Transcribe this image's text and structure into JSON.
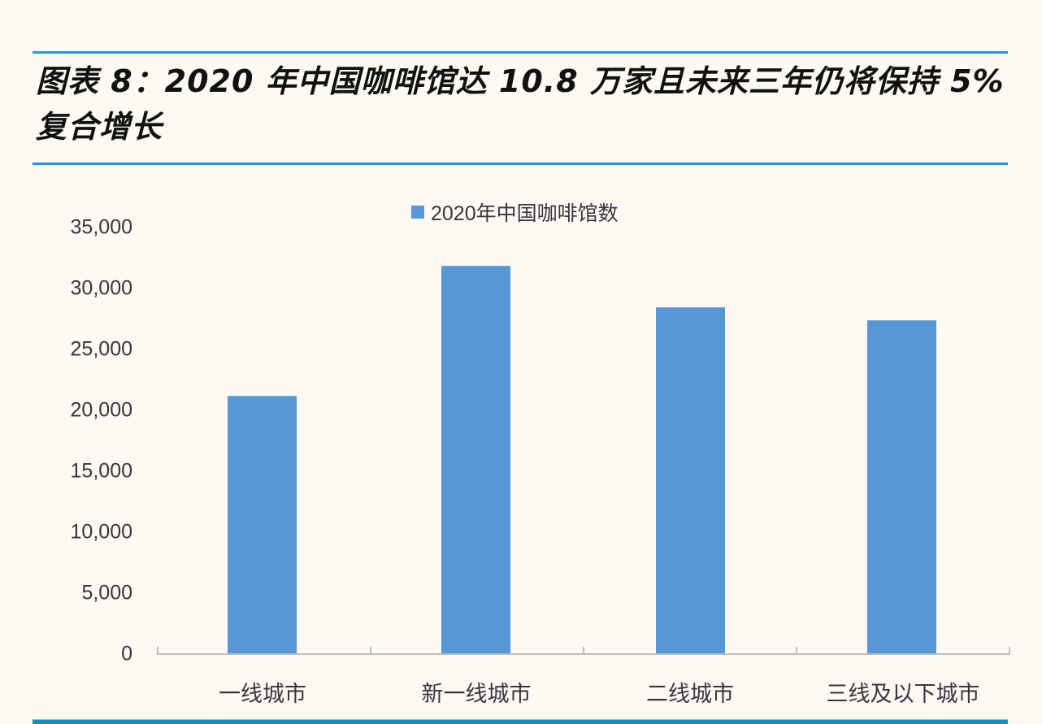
{
  "header": {
    "title": "图表 8：2020 年中国咖啡馆达 10.8 万家且未来三年仍将保持 5%复合增长"
  },
  "colors": {
    "accent_rule": "#1f9bd7",
    "bar": "#5797d6",
    "background": "#fdfaf3"
  },
  "legend": {
    "label": "2020年中国咖啡馆数"
  },
  "y_axis": {
    "ticks": [
      "35,000",
      "30,000",
      "25,000",
      "20,000",
      "15,000",
      "10,000",
      "5,000",
      "0"
    ]
  },
  "x_axis": {
    "labels": [
      "一线城市",
      "新一线城市",
      "二线城市",
      "三线及以下城市"
    ]
  },
  "chart_data": {
    "type": "bar",
    "title": "图表 8：2020 年中国咖啡馆达 10.8 万家且未来三年仍将保持 5%复合增长",
    "categories": [
      "一线城市",
      "新一线城市",
      "二线城市",
      "三线及以下城市"
    ],
    "series": [
      {
        "name": "2020年中国咖啡馆数",
        "values": [
          21200,
          31900,
          28500,
          27400
        ]
      }
    ],
    "xlabel": "",
    "ylabel": "",
    "ylim": [
      0,
      35000
    ],
    "yticks": [
      0,
      5000,
      10000,
      15000,
      20000,
      25000,
      30000,
      35000
    ],
    "grid": false,
    "legend_position": "top"
  }
}
